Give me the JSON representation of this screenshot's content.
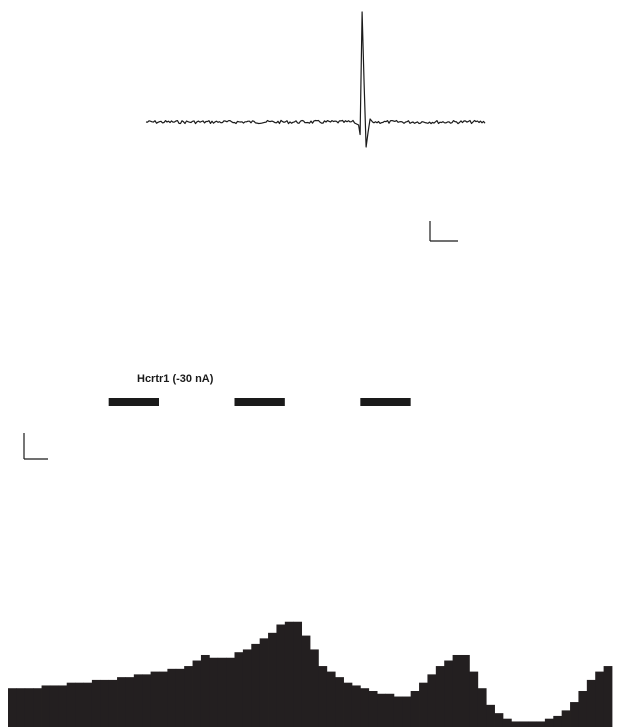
{
  "figure": {
    "stimulus_label": "Hcrtr1 (-30 nA)"
  },
  "chart_data": [
    {
      "type": "line",
      "panel": "spike-waveform",
      "title": "",
      "xlabel": "",
      "ylabel": "",
      "grid": false,
      "legend": "none",
      "line_color": "#1a1a1a",
      "baseline": 0,
      "ylim": [
        -30,
        112
      ],
      "spike": {
        "x": 0.64,
        "peak": 110,
        "trough": -25
      },
      "scale_bar": true
    },
    {
      "type": "bar",
      "panel": "rate-histogram",
      "title": "",
      "xlabel": "",
      "ylabel": "",
      "grid": false,
      "legend": "none",
      "bar_color": "#231f20",
      "ylim": [
        0,
        100
      ],
      "stimulus_periods": [
        [
          12,
          18
        ],
        [
          27,
          33
        ],
        [
          42,
          48
        ]
      ],
      "scale_bar": true,
      "values": [
        14,
        14,
        14,
        14,
        15,
        15,
        15,
        16,
        16,
        16,
        17,
        17,
        17,
        18,
        18,
        19,
        19,
        20,
        20,
        21,
        21,
        22,
        24,
        26,
        25,
        25,
        25,
        27,
        28,
        30,
        32,
        34,
        37,
        38,
        38,
        33,
        28,
        22,
        20,
        18,
        16,
        15,
        14,
        13,
        12,
        12,
        11,
        11,
        13,
        16,
        19,
        22,
        24,
        26,
        26,
        20,
        14,
        8,
        5,
        3,
        2,
        2,
        2,
        2,
        3,
        4,
        6,
        9,
        13,
        17,
        20,
        22
      ]
    }
  ]
}
